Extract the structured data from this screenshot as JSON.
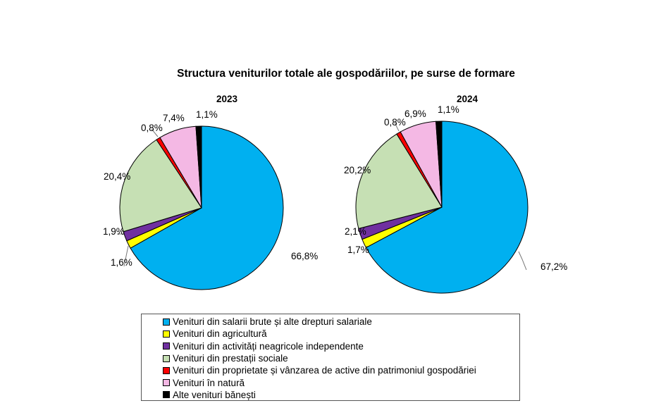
{
  "chart_data": {
    "type": "pie",
    "title": "Structura veniturilor totale ale gospodăriilor, pe surse de formare",
    "categories": [
      "Venituri din salarii brute și alte drepturi salariale",
      "Venituri din agricultură",
      "Venituri din activități neagricole independente",
      "Venituri din prestații sociale",
      "Venituri din proprietate și vânzarea de active din patrimoniul gospodăriei",
      "Venituri în natură",
      "Alte venituri bănești"
    ],
    "colors": [
      "#00b0f0",
      "#ffff00",
      "#7030a0",
      "#c6e0b4",
      "#ff0000",
      "#f4b8e4",
      "#000000"
    ],
    "charts": [
      {
        "subtitle": "2023",
        "values": [
          66.8,
          1.6,
          1.9,
          20.4,
          0.8,
          7.4,
          1.1
        ],
        "labels": [
          "66,8%",
          "1,6%",
          "1,9%",
          "20,4%",
          "0,8%",
          "7,4%",
          "1,1%"
        ]
      },
      {
        "subtitle": "2024",
        "values": [
          67.2,
          1.7,
          2.1,
          20.2,
          0.8,
          6.9,
          1.1
        ],
        "labels": [
          "67,2%",
          "1,7%",
          "2,1%",
          "20,2%",
          "0,8%",
          "6,9%",
          "1,1%"
        ]
      }
    ],
    "legend_position": "bottom"
  }
}
